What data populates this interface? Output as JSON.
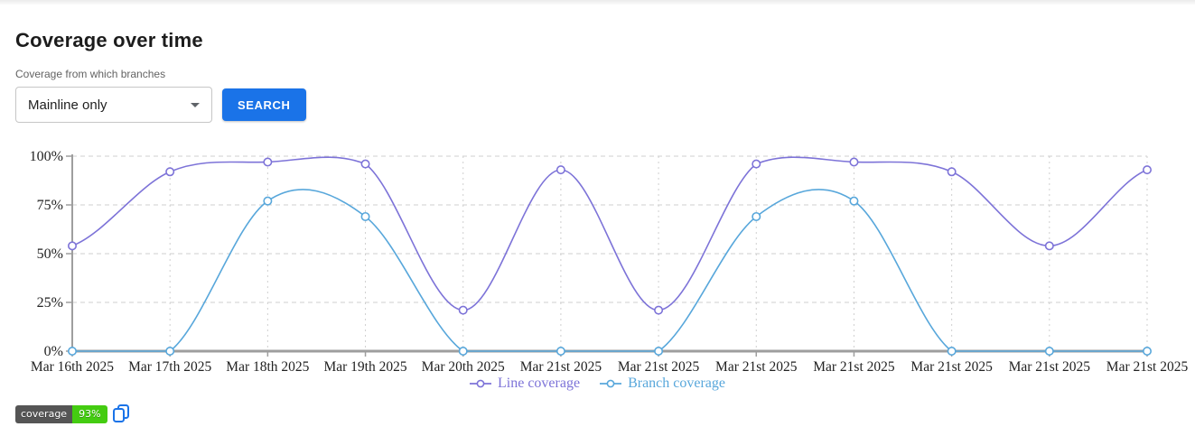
{
  "page": {
    "title": "Coverage over time"
  },
  "filter": {
    "label": "Coverage from which branches",
    "dropdown_value": "Mainline only",
    "search_label": "SEARCH"
  },
  "chart_data": {
    "type": "line",
    "title": "Coverage over time",
    "x_labels": [
      "Mar 16th 2025",
      "Mar 17th 2025",
      "Mar 18th 2025",
      "Mar 19th 2025",
      "Mar 20th 2025",
      "Mar 21st 2025",
      "Mar 21st 2025",
      "Mar 21st 2025",
      "Mar 21st 2025",
      "Mar 21st 2025",
      "Mar 21st 2025",
      "Mar 21st 2025"
    ],
    "y_ticks": [
      0,
      25,
      50,
      75,
      100
    ],
    "y_tick_suffix": "%",
    "ylim": [
      0,
      100
    ],
    "grid": true,
    "legend_position": "bottom",
    "series": [
      {
        "name": "Line coverage",
        "color": "#7d73d8",
        "values": [
          54,
          92,
          97,
          96,
          21,
          93,
          21,
          96,
          97,
          92,
          54,
          93
        ]
      },
      {
        "name": "Branch coverage",
        "color": "#58a7db",
        "values": [
          0,
          0,
          77,
          69,
          0,
          0,
          0,
          69,
          77,
          0,
          0,
          0
        ]
      }
    ]
  },
  "badge": {
    "label": "coverage",
    "value": "93%",
    "label_bg": "#555555",
    "value_bg": "#44cc11"
  },
  "colors": {
    "accent_blue": "#1a73e8",
    "axis": "#9e9e9e",
    "gridline": "#cfcfcf",
    "tick_text": "#222222"
  }
}
